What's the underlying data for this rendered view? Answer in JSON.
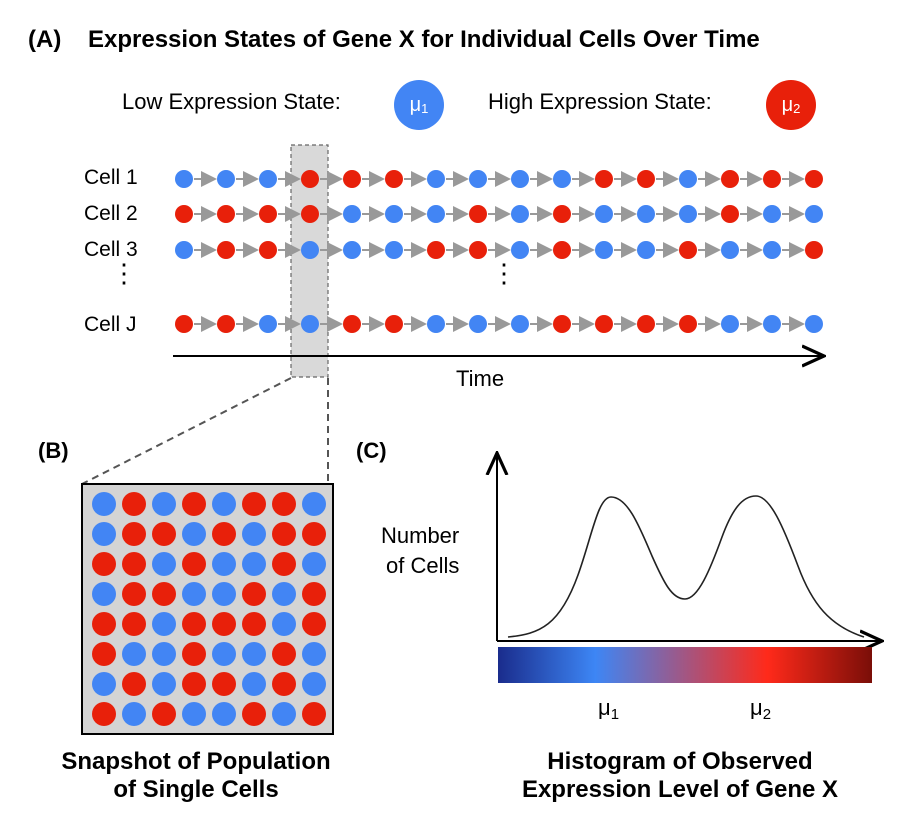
{
  "panel_a": {
    "label": "(A)",
    "title": "Expression States of Gene X for Individual Cells Over Time",
    "legend": {
      "low_label": "Low Expression State:",
      "low_symbol": "μ",
      "low_sub": "1",
      "high_label": "High Expression State:",
      "high_symbol": "μ",
      "high_sub": "2"
    },
    "rows": [
      {
        "label": "Cell 1",
        "states": [
          "L",
          "L",
          "L",
          "H",
          "H",
          "H",
          "L",
          "L",
          "L",
          "L",
          "H",
          "H",
          "L",
          "H",
          "H",
          "H"
        ]
      },
      {
        "label": "Cell 2",
        "states": [
          "H",
          "H",
          "H",
          "H",
          "L",
          "L",
          "L",
          "H",
          "L",
          "H",
          "L",
          "L",
          "L",
          "H",
          "L",
          "L"
        ]
      },
      {
        "label": "Cell 3",
        "states": [
          "L",
          "H",
          "H",
          "L",
          "L",
          "L",
          "H",
          "H",
          "L",
          "H",
          "L",
          "L",
          "H",
          "L",
          "L",
          "H"
        ]
      },
      {
        "label": "Cell J",
        "states": [
          "H",
          "H",
          "L",
          "L",
          "H",
          "H",
          "L",
          "L",
          "L",
          "H",
          "H",
          "H",
          "H",
          "L",
          "L",
          "L"
        ]
      }
    ],
    "ellipsis": "⋮",
    "axis_label": "Time"
  },
  "panel_b": {
    "label": "(B)",
    "grid": [
      [
        "L",
        "H",
        "L",
        "H",
        "L",
        "H",
        "H",
        "L"
      ],
      [
        "L",
        "H",
        "H",
        "L",
        "H",
        "L",
        "H",
        "H"
      ],
      [
        "H",
        "H",
        "L",
        "H",
        "L",
        "L",
        "H",
        "L"
      ],
      [
        "L",
        "H",
        "H",
        "L",
        "L",
        "H",
        "L",
        "H"
      ],
      [
        "H",
        "H",
        "L",
        "H",
        "H",
        "H",
        "L",
        "H"
      ],
      [
        "H",
        "L",
        "L",
        "H",
        "L",
        "L",
        "H",
        "L"
      ],
      [
        "L",
        "H",
        "L",
        "H",
        "H",
        "L",
        "H",
        "L"
      ],
      [
        "H",
        "L",
        "H",
        "L",
        "L",
        "H",
        "L",
        "H"
      ]
    ],
    "caption_line1": "Snapshot of Population",
    "caption_line2": "of Single Cells"
  },
  "panel_c": {
    "label": "(C)",
    "ylabel_line1": "Number",
    "ylabel_line2": "of Cells",
    "tick1_symbol": "μ",
    "tick1_sub": "1",
    "tick2_symbol": "μ",
    "tick2_sub": "2",
    "caption_line1": "Histogram of Observed",
    "caption_line2": "Expression Level of Gene X"
  },
  "colors": {
    "low": "#4285f4",
    "high": "#e8200a",
    "arrow": "#999999",
    "highlight": "#d9d9d9",
    "snapshot_bg": "#d4d4d4",
    "gradient": [
      "#1a2c8c",
      "#3d86f5",
      "#ff2a1a",
      "#7a0e08"
    ]
  }
}
